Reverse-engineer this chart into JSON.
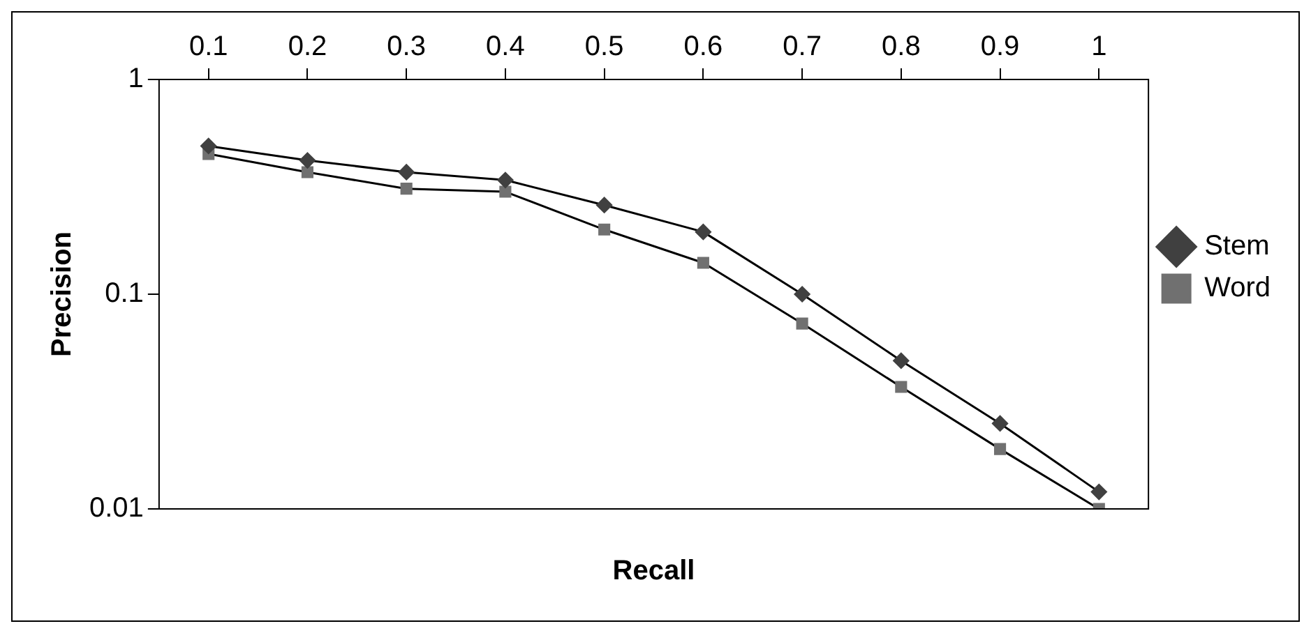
{
  "chart_data": {
    "type": "line",
    "xlabel": "Recall",
    "ylabel": "Precision",
    "categories": [
      "0.1",
      "0.2",
      "0.3",
      "0.4",
      "0.5",
      "0.6",
      "0.7",
      "0.8",
      "0.9",
      "1"
    ],
    "series": [
      {
        "name": "Stem",
        "color": "#404040",
        "marker": "diamond",
        "values": [
          0.49,
          0.42,
          0.37,
          0.34,
          0.26,
          0.195,
          0.1,
          0.049,
          0.025,
          0.012
        ]
      },
      {
        "name": "Word",
        "color": "#707070",
        "marker": "square",
        "values": [
          0.45,
          0.37,
          0.31,
          0.3,
          0.2,
          0.14,
          0.073,
          0.037,
          0.019,
          0.01
        ]
      }
    ],
    "log": "y",
    "ylim": [
      0.01,
      1
    ],
    "yticks": [
      0.01,
      0.1,
      1
    ],
    "grid": false,
    "legend": "right",
    "line_style": "solid"
  }
}
